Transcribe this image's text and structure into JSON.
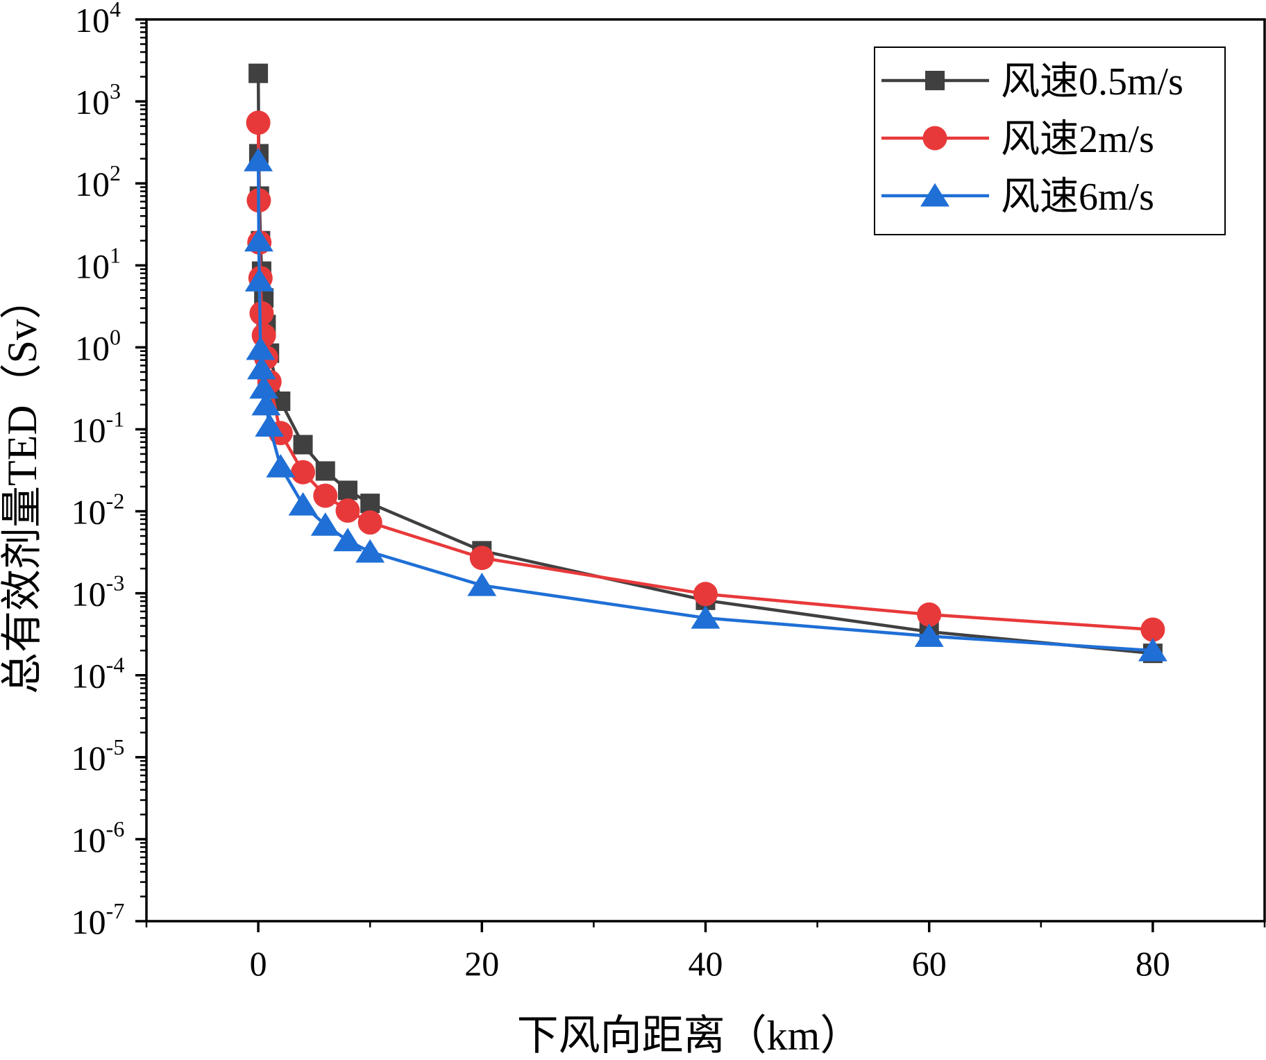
{
  "chart_data": {
    "type": "line",
    "title": "",
    "xlabel": "下风向距离（km）",
    "ylabel": "总有效剂量TED（Sv）",
    "xscale": "linear",
    "yscale": "log",
    "xlim": [
      -10,
      90
    ],
    "ylim": [
      1e-07,
      10000
    ],
    "x_ticks": [
      0,
      20,
      40,
      60,
      80
    ],
    "y_tick_labels": [
      {
        "exp": -7,
        "base": "10",
        "sup": "-7"
      },
      {
        "exp": -6,
        "base": "10",
        "sup": "-6"
      },
      {
        "exp": -5,
        "base": "10",
        "sup": "-5"
      },
      {
        "exp": -4,
        "base": "10",
        "sup": "-4"
      },
      {
        "exp": -3,
        "base": "10",
        "sup": "-3"
      },
      {
        "exp": -2,
        "base": "10",
        "sup": "-2"
      },
      {
        "exp": -1,
        "base": "10",
        "sup": "-1"
      },
      {
        "exp": 0,
        "base": "10",
        "sup": "0"
      },
      {
        "exp": 1,
        "base": "10",
        "sup": "1"
      },
      {
        "exp": 2,
        "base": "10",
        "sup": "2"
      },
      {
        "exp": 3,
        "base": "10",
        "sup": "3"
      },
      {
        "exp": 4,
        "base": "10",
        "sup": "4"
      }
    ],
    "legend_position": "top-right",
    "series": [
      {
        "name": "风速0.5m/s",
        "color": "#404040",
        "marker": "square",
        "x": [
          0,
          0.05,
          0.1,
          0.2,
          0.3,
          0.5,
          0.7,
          1,
          2,
          4,
          6,
          8,
          10,
          20,
          40,
          60,
          80
        ],
        "y": [
          2200,
          230,
          70,
          20,
          8.5,
          4.0,
          1.9,
          0.85,
          0.22,
          0.065,
          0.031,
          0.018,
          0.0125,
          0.0033,
          0.00082,
          0.00034,
          0.000185
        ]
      },
      {
        "name": "风速2m/s",
        "color": "#e8393a",
        "marker": "circle",
        "x": [
          0,
          0.05,
          0.1,
          0.2,
          0.3,
          0.5,
          0.7,
          1,
          2,
          4,
          6,
          8,
          10,
          20,
          40,
          60,
          80
        ],
        "y": [
          550,
          62,
          19,
          7.0,
          2.6,
          1.4,
          0.75,
          0.38,
          0.09,
          0.03,
          0.0155,
          0.0102,
          0.0073,
          0.0027,
          0.00098,
          0.00055,
          0.00036
        ]
      },
      {
        "name": "风速6m/s",
        "color": "#1f6fd6",
        "marker": "triangle",
        "x": [
          0,
          0.05,
          0.1,
          0.2,
          0.3,
          0.5,
          0.7,
          1,
          2,
          4,
          6,
          8,
          10,
          20,
          40,
          60,
          80
        ],
        "y": [
          190,
          20,
          6.5,
          0.95,
          0.55,
          0.32,
          0.2,
          0.11,
          0.035,
          0.012,
          0.0068,
          0.0044,
          0.0032,
          0.00125,
          0.0005,
          0.0003,
          0.0002
        ]
      }
    ]
  }
}
